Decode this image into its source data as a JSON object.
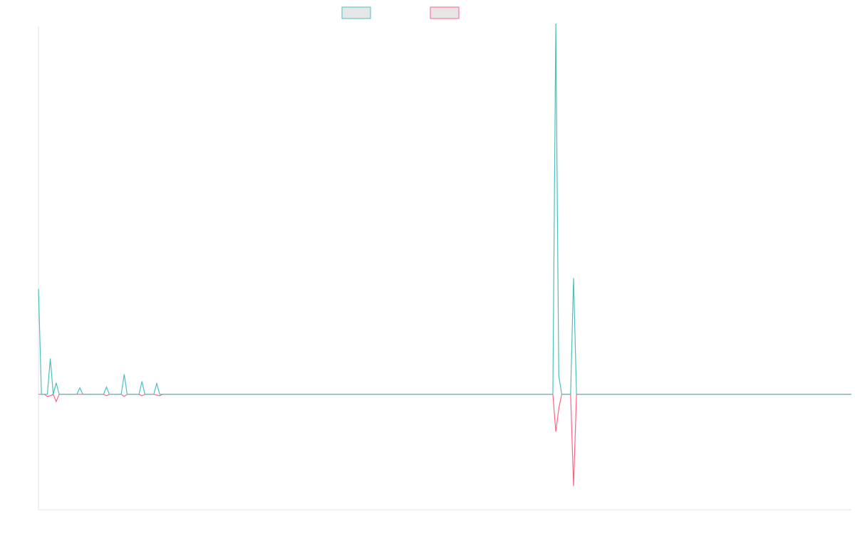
{
  "chart_data": {
    "type": "line",
    "title": "",
    "xlabel": "",
    "ylabel": "",
    "x": [
      0,
      1,
      2,
      3,
      4,
      5,
      6,
      7,
      8,
      9,
      10,
      11,
      12,
      13,
      14,
      15,
      16,
      17,
      18,
      19,
      20,
      21,
      22,
      23,
      24,
      25,
      26,
      27,
      28,
      29,
      30,
      31,
      32,
      33,
      34,
      35,
      36,
      37,
      38,
      39,
      40,
      41,
      42,
      43,
      44,
      45,
      46,
      47,
      48,
      49,
      50,
      51,
      52,
      53,
      54,
      55,
      56,
      57,
      58,
      59,
      60,
      61,
      62,
      63,
      64,
      65,
      66,
      67,
      68,
      69,
      70,
      71,
      72,
      73,
      74,
      75,
      76,
      77,
      78,
      79,
      80,
      81,
      82,
      83,
      84,
      85,
      86,
      87,
      88,
      89,
      90,
      91,
      92,
      93,
      94,
      95,
      96,
      97,
      98,
      99,
      100,
      101,
      102,
      103,
      104,
      105,
      106,
      107,
      108,
      109,
      110,
      111,
      112,
      113,
      114,
      115,
      116,
      117,
      118,
      119,
      120,
      121,
      122,
      123,
      124,
      125,
      126,
      127,
      128,
      129,
      130,
      131,
      132,
      133,
      134,
      135,
      136,
      137,
      138,
      139,
      140,
      141,
      142,
      143,
      144,
      145,
      146,
      147,
      148,
      149,
      150,
      151,
      152,
      153,
      154,
      155,
      156,
      157,
      158,
      159,
      160,
      161,
      162,
      163,
      164,
      165,
      166,
      167,
      168,
      169,
      170,
      171,
      172,
      173,
      174,
      175,
      176,
      177,
      178,
      179,
      180,
      181,
      182,
      183,
      184,
      185,
      186,
      187,
      188,
      189,
      190,
      191,
      192,
      193,
      194,
      195,
      196,
      197,
      198,
      199,
      200,
      201,
      202,
      203,
      204,
      205,
      206,
      207,
      208,
      209,
      210,
      211,
      212,
      213,
      214,
      215,
      216,
      217,
      218,
      219,
      220,
      221,
      222,
      223,
      224,
      225,
      226,
      227,
      228,
      229,
      230,
      231,
      232,
      233,
      234,
      235,
      236,
      237,
      238,
      239,
      240,
      241,
      242,
      243,
      244,
      245,
      246,
      247,
      248,
      249,
      250,
      251,
      252,
      253,
      254,
      255,
      256,
      257,
      258,
      259,
      260,
      261,
      262,
      263,
      264,
      265,
      266,
      267,
      268,
      269,
      270,
      271,
      272,
      273,
      274,
      275
    ],
    "series": [
      {
        "color": "#4bc0c0",
        "values": [
          147,
          0,
          0,
          0,
          50,
          0,
          16,
          0,
          0,
          0,
          0,
          0,
          0,
          0,
          9,
          0,
          0,
          0,
          0,
          0,
          0,
          0,
          0,
          10,
          0,
          0,
          0,
          0,
          0,
          28,
          0,
          0,
          0,
          0,
          0,
          18,
          0,
          0,
          0,
          0,
          15,
          0,
          0,
          0,
          0,
          0,
          0,
          0,
          0,
          0,
          0,
          0,
          0,
          0,
          0,
          0,
          0,
          0,
          0,
          0,
          0,
          0,
          0,
          0,
          0,
          0,
          0,
          0,
          0,
          0,
          0,
          0,
          0,
          0,
          0,
          0,
          0,
          0,
          0,
          0,
          0,
          0,
          0,
          0,
          0,
          0,
          0,
          0,
          0,
          0,
          0,
          0,
          0,
          0,
          0,
          0,
          0,
          0,
          0,
          0,
          0,
          0,
          0,
          0,
          0,
          0,
          0,
          0,
          0,
          0,
          0,
          0,
          0,
          0,
          0,
          0,
          0,
          0,
          0,
          0,
          0,
          0,
          0,
          0,
          0,
          0,
          0,
          0,
          0,
          0,
          0,
          0,
          0,
          0,
          0,
          0,
          0,
          0,
          0,
          0,
          0,
          0,
          0,
          0,
          0,
          0,
          0,
          0,
          0,
          0,
          0,
          0,
          0,
          0,
          0,
          0,
          0,
          0,
          0,
          0,
          0,
          0,
          0,
          0,
          0,
          0,
          0,
          0,
          0,
          0,
          0,
          0,
          0,
          0,
          0,
          517,
          26,
          0,
          0,
          0,
          0,
          162,
          0,
          0,
          0,
          0,
          0,
          0,
          0,
          0,
          0,
          0,
          0,
          0,
          0,
          0,
          0,
          0,
          0,
          0,
          0,
          0,
          0,
          0,
          0,
          0,
          0,
          0,
          0,
          0,
          0,
          0,
          0,
          0,
          0,
          0,
          0,
          0,
          0,
          0,
          0,
          0,
          0,
          0,
          0,
          0,
          0,
          0,
          0,
          0,
          0,
          0,
          0,
          0,
          0,
          0,
          0,
          0,
          0,
          0,
          0,
          0,
          0,
          0,
          0,
          0,
          0,
          0,
          0,
          0,
          0,
          0,
          0,
          0,
          0,
          0,
          0,
          0,
          0,
          0,
          0,
          0,
          0,
          0,
          0,
          0,
          0,
          0,
          0,
          0,
          0,
          0,
          0,
          0,
          0,
          0
        ]
      },
      {
        "color": "#ff6384",
        "values": [
          0,
          0,
          0,
          -3,
          -2,
          0,
          -10,
          0,
          0,
          0,
          0,
          0,
          0,
          0,
          0,
          0,
          0,
          0,
          0,
          0,
          0,
          0,
          0,
          -2,
          0,
          0,
          0,
          0,
          0,
          -3,
          0,
          0,
          0,
          0,
          0,
          -2,
          0,
          0,
          0,
          0,
          -1,
          -2,
          0,
          0,
          0,
          0,
          0,
          0,
          0,
          0,
          0,
          0,
          0,
          0,
          0,
          0,
          0,
          0,
          0,
          0,
          0,
          0,
          0,
          0,
          0,
          0,
          0,
          0,
          0,
          0,
          0,
          0,
          0,
          0,
          0,
          0,
          0,
          0,
          0,
          0,
          0,
          0,
          0,
          0,
          0,
          0,
          0,
          0,
          0,
          0,
          0,
          0,
          0,
          0,
          0,
          0,
          0,
          0,
          0,
          0,
          0,
          0,
          0,
          0,
          0,
          0,
          0,
          0,
          0,
          0,
          0,
          0,
          0,
          0,
          0,
          0,
          0,
          0,
          0,
          0,
          0,
          0,
          0,
          0,
          0,
          0,
          0,
          0,
          0,
          0,
          0,
          0,
          0,
          0,
          0,
          0,
          0,
          0,
          0,
          0,
          0,
          0,
          0,
          0,
          0,
          0,
          0,
          0,
          0,
          0,
          0,
          0,
          0,
          0,
          0,
          0,
          0,
          0,
          0,
          0,
          0,
          0,
          0,
          0,
          0,
          0,
          0,
          0,
          0,
          0,
          0,
          0,
          0,
          0,
          0,
          -52,
          -20,
          0,
          0,
          0,
          0,
          -128,
          0,
          0,
          0,
          0,
          0,
          0,
          0,
          0,
          0,
          0,
          0,
          0,
          0,
          0,
          0,
          0,
          0,
          0,
          0,
          0,
          0,
          0,
          0,
          0,
          0,
          0,
          0,
          0,
          0,
          0,
          0,
          0,
          0,
          0,
          0,
          0,
          0,
          0,
          0,
          0,
          0,
          0,
          0,
          0,
          0,
          0,
          0,
          0,
          0,
          0,
          0,
          0,
          0,
          0,
          0,
          0,
          0,
          0,
          0,
          0,
          0,
          0,
          0,
          0,
          0,
          0,
          0,
          0,
          0,
          0,
          0,
          0,
          0,
          0,
          0,
          0,
          0,
          0,
          0,
          0,
          0,
          0,
          0,
          0,
          0,
          0,
          0,
          0,
          0,
          0,
          0,
          0,
          0,
          0
        ]
      }
    ],
    "ylim": [
      -161,
      513
    ],
    "xlim": [
      0,
      275
    ],
    "grid": false,
    "legend": "top-center"
  }
}
